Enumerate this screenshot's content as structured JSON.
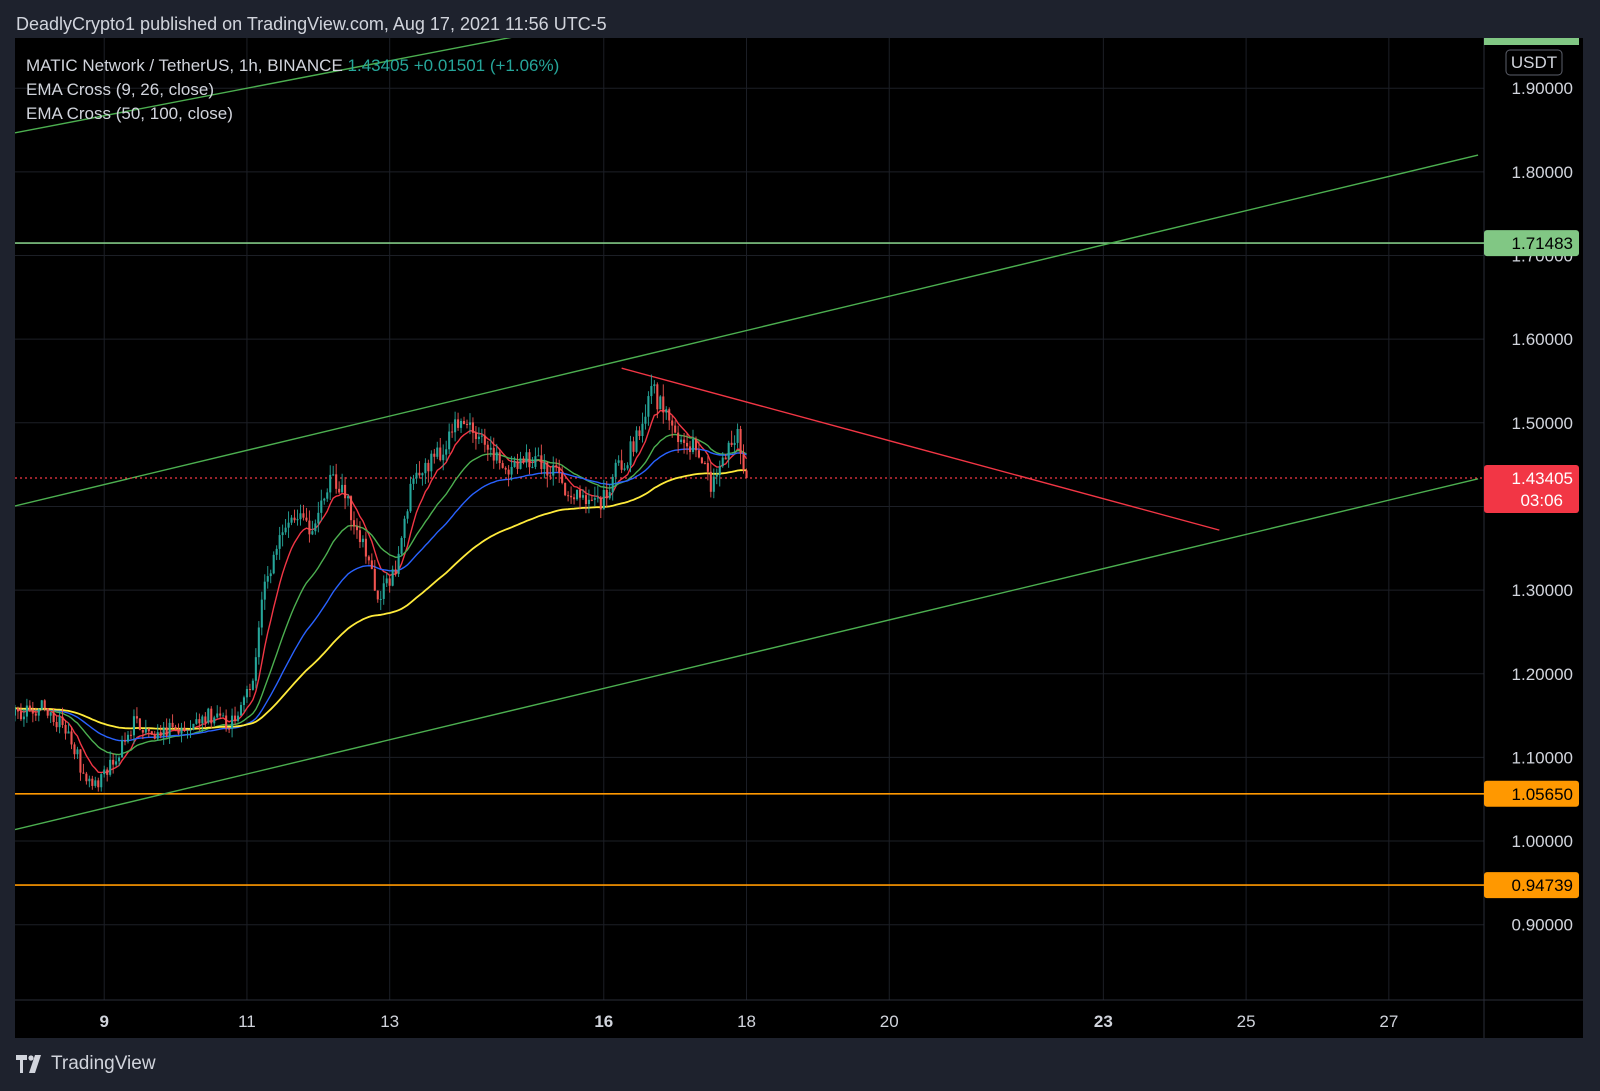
{
  "header": {
    "publish_info": "DeadlyCrypto1 published on TradingView.com, Aug 17, 2021 11:56 UTC-5"
  },
  "legend": {
    "symbol": "MATIC Network / TetherUS, 1h, BINANCE",
    "price": "1.43405",
    "change": "+0.01501 (+1.06%)",
    "ema1": "EMA Cross (9, 26, close)",
    "ema2": "EMA Cross (50, 100, close)"
  },
  "footer": {
    "brand": "TradingView"
  },
  "colors": {
    "bg": "#000000",
    "up": "#26a69a",
    "down": "#ef5350",
    "channel": "#4caf50",
    "orange": "#ff9800",
    "resistance_label": "#81c784",
    "ema_red": "#f23645",
    "ema_green": "#4caf50",
    "ema_blue": "#2962ff",
    "ema_yellow": "#ffeb3b",
    "trend_red": "#f23645"
  },
  "chart_data": {
    "type": "candlestick",
    "y_unit": "USDT",
    "ylim": [
      0.81,
      1.96
    ],
    "xlim": [
      "2021-08-07 18:00",
      "2021-08-28 08:00"
    ],
    "y_ticks": [
      "1.90000",
      "1.80000",
      "1.70000",
      "1.60000",
      "1.50000",
      "1.30000",
      "1.20000",
      "1.10000",
      "1.00000",
      "0.90000"
    ],
    "x_ticks": [
      {
        "label": "9",
        "date": "2021-08-09",
        "bold": true
      },
      {
        "label": "11",
        "date": "2021-08-11"
      },
      {
        "label": "13",
        "date": "2021-08-13"
      },
      {
        "label": "16",
        "date": "2021-08-16",
        "bold": true
      },
      {
        "label": "18",
        "date": "2021-08-18"
      },
      {
        "label": "20",
        "date": "2021-08-20"
      },
      {
        "label": "23",
        "date": "2021-08-23",
        "bold": true
      },
      {
        "label": "25",
        "date": "2021-08-25"
      },
      {
        "label": "27",
        "date": "2021-08-27"
      }
    ],
    "price_path": [
      [
        "2021-08-07 18:00",
        1.15
      ],
      [
        "2021-08-08 03:00",
        1.16
      ],
      [
        "2021-08-08 12:00",
        1.13
      ],
      [
        "2021-08-08 17:00",
        1.08
      ],
      [
        "2021-08-08 22:00",
        1.07
      ],
      [
        "2021-08-09 04:00",
        1.1
      ],
      [
        "2021-08-09 10:00",
        1.14
      ],
      [
        "2021-08-09 18:00",
        1.13
      ],
      [
        "2021-08-10 03:00",
        1.14
      ],
      [
        "2021-08-10 12:00",
        1.15
      ],
      [
        "2021-08-10 20:00",
        1.14
      ],
      [
        "2021-08-11 02:00",
        1.19
      ],
      [
        "2021-08-11 06:00",
        1.31
      ],
      [
        "2021-08-11 12:00",
        1.37
      ],
      [
        "2021-08-11 18:00",
        1.39
      ],
      [
        "2021-08-11 22:00",
        1.36
      ],
      [
        "2021-08-12 04:00",
        1.44
      ],
      [
        "2021-08-12 10:00",
        1.4
      ],
      [
        "2021-08-12 16:00",
        1.34
      ],
      [
        "2021-08-12 20:00",
        1.29
      ],
      [
        "2021-08-13 02:00",
        1.33
      ],
      [
        "2021-08-13 08:00",
        1.44
      ],
      [
        "2021-08-13 16:00",
        1.46
      ],
      [
        "2021-08-13 22:00",
        1.5
      ],
      [
        "2021-08-14 06:00",
        1.48
      ],
      [
        "2021-08-14 16:00",
        1.45
      ],
      [
        "2021-08-15 02:00",
        1.46
      ],
      [
        "2021-08-15 12:00",
        1.42
      ],
      [
        "2021-08-15 22:00",
        1.4
      ],
      [
        "2021-08-16 04:00",
        1.44
      ],
      [
        "2021-08-16 10:00",
        1.47
      ],
      [
        "2021-08-16 16:00",
        1.54
      ],
      [
        "2021-08-16 22:00",
        1.5
      ],
      [
        "2021-08-17 06:00",
        1.47
      ],
      [
        "2021-08-17 12:00",
        1.43
      ],
      [
        "2021-08-17 17:00",
        1.46
      ],
      [
        "2021-08-17 21:00",
        1.48
      ],
      [
        "2021-08-18 00:00",
        1.43405
      ]
    ],
    "ema": [
      {
        "name": "EMA 9",
        "color": "#f23645"
      },
      {
        "name": "EMA 26",
        "color": "#4caf50"
      },
      {
        "name": "EMA 50",
        "color": "#2962ff"
      },
      {
        "name": "EMA 100",
        "color": "#ffeb3b"
      }
    ],
    "horizontal_lines": [
      {
        "price": 1.71483,
        "label": "1.71483",
        "color": "#81c784",
        "text_color": "#000000"
      },
      {
        "price": 1.0565,
        "label": "1.05650",
        "color": "#ff9800",
        "text_color": "#000000"
      },
      {
        "price": 0.94739,
        "label": "0.94739",
        "color": "#ff9800",
        "text_color": "#000000"
      }
    ],
    "current_price": {
      "price": 1.43405,
      "label": "1.43405",
      "countdown": "03:06",
      "color": "#f23645"
    },
    "trend_lines": [
      {
        "name": "channel-upper-outer",
        "color": "#4caf50",
        "from": [
          "2021-08-07 18:00",
          1.8466
        ],
        "to": [
          "2021-08-15 02:00",
          1.967
        ]
      },
      {
        "name": "channel-upper",
        "color": "#4caf50",
        "from": [
          "2021-08-07 18:00",
          1.4006
        ],
        "to": [
          "2021-08-28 06:00",
          1.8201
        ]
      },
      {
        "name": "channel-lower",
        "color": "#4caf50",
        "from": [
          "2021-08-07 18:00",
          1.0137
        ],
        "to": [
          "2021-08-28 06:00",
          1.4331
        ]
      },
      {
        "name": "descending-resistance",
        "color": "#f23645",
        "from": [
          "2021-08-16 06:00",
          1.5653
        ],
        "to": [
          "2021-08-24 15:00",
          1.3717
        ]
      }
    ],
    "top_label": {
      "text": "USDT"
    }
  }
}
